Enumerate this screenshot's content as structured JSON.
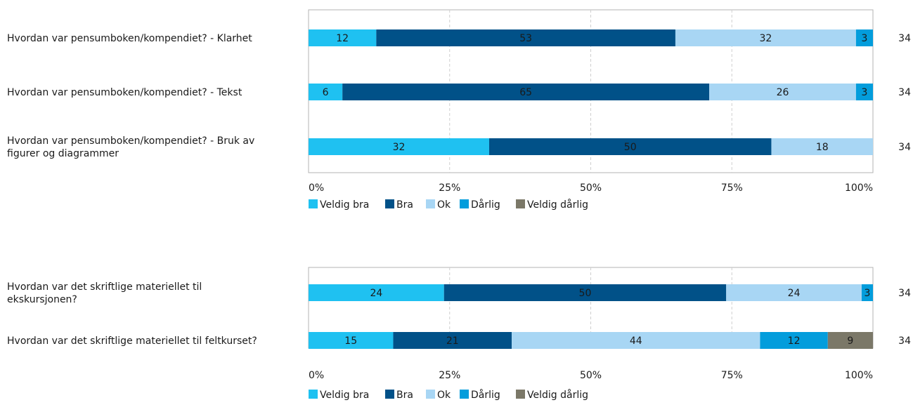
{
  "legend_colors": {
    "Veldig bra": "#1fc1f1",
    "Bra": "#015188",
    "Ok": "#a8d6f4",
    "Dårlig": "#039ddc",
    "Veldig dårlig": "#7b7868"
  },
  "chart_data": [
    {
      "type": "bar",
      "orientation": "horizontal",
      "stacked": true,
      "xlim": [
        0,
        100
      ],
      "xticks": [
        "0%",
        "25%",
        "50%",
        "75%",
        "100%"
      ],
      "legend": [
        "Veldig bra",
        "Bra",
        "Ok",
        "Dårlig",
        "Veldig dårlig"
      ],
      "legend_position": "bottom",
      "grid": "vertical dashed",
      "categories": [
        [
          "Hvordan var pensumboken/kompendiet? - Klarhet"
        ],
        [
          "Hvordan var pensumboken/kompendiet? - Tekst"
        ],
        [
          "Hvordan var pensumboken/kompendiet? - Bruk av",
          "figurer og diagrammer"
        ]
      ],
      "counts": [
        "34",
        "34",
        "34"
      ],
      "series": [
        {
          "name": "Veldig bra",
          "values": [
            12,
            6,
            32
          ]
        },
        {
          "name": "Bra",
          "values": [
            53,
            65,
            50
          ]
        },
        {
          "name": "Ok",
          "values": [
            32,
            26,
            18
          ]
        },
        {
          "name": "Dårlig",
          "values": [
            3,
            3,
            0
          ]
        },
        {
          "name": "Veldig dårlig",
          "values": [
            0,
            0,
            0
          ]
        }
      ]
    },
    {
      "type": "bar",
      "orientation": "horizontal",
      "stacked": true,
      "xlim": [
        0,
        100
      ],
      "xticks": [
        "0%",
        "25%",
        "50%",
        "75%",
        "100%"
      ],
      "legend": [
        "Veldig bra",
        "Bra",
        "Ok",
        "Dårlig",
        "Veldig dårlig"
      ],
      "legend_position": "bottom",
      "grid": "vertical dashed",
      "categories": [
        [
          "Hvordan var det skriftlige materiellet til",
          "ekskursjonen?"
        ],
        [
          "Hvordan var det skriftlige materiellet til feltkurset?"
        ]
      ],
      "counts": [
        "34",
        "34"
      ],
      "series": [
        {
          "name": "Veldig bra",
          "values": [
            24,
            15
          ]
        },
        {
          "name": "Bra",
          "values": [
            50,
            21
          ]
        },
        {
          "name": "Ok",
          "values": [
            24,
            44
          ]
        },
        {
          "name": "Dårlig",
          "values": [
            3,
            12
          ]
        },
        {
          "name": "Veldig dårlig",
          "values": [
            0,
            9
          ]
        }
      ]
    }
  ]
}
